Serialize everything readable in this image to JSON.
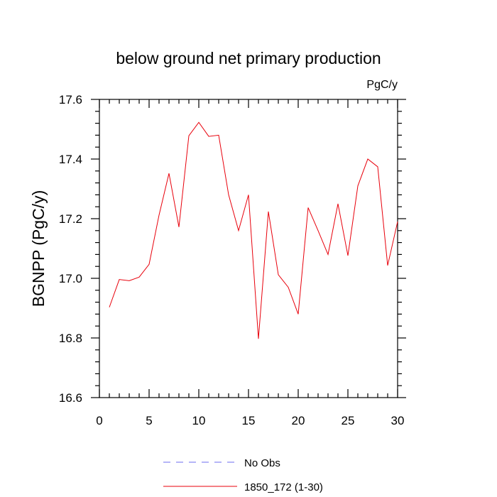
{
  "chart_data": {
    "type": "line",
    "title": "below ground net primary production",
    "units": "PgC/y",
    "ylabel": "BGNPP  (PgC/y)",
    "xlabel": "",
    "xlim": [
      0,
      30
    ],
    "ylim": [
      16.6,
      17.6
    ],
    "xticks": [
      0,
      5,
      10,
      15,
      20,
      25,
      30
    ],
    "xtick_labels": [
      "0",
      "5",
      "10",
      "15",
      "20",
      "25",
      "30"
    ],
    "yticks": [
      16.6,
      16.8,
      17.0,
      17.2,
      17.4,
      17.6
    ],
    "ytick_labels": [
      "16.6",
      "16.8",
      "17.0",
      "17.2",
      "17.4",
      "17.6"
    ],
    "series": [
      {
        "name": "1850_172 (1-30)",
        "color": "#e8000b",
        "dash": "solid",
        "x": [
          1,
          2,
          3,
          4,
          5,
          6,
          7,
          8,
          9,
          10,
          11,
          12,
          13,
          14,
          15,
          16,
          17,
          18,
          19,
          20,
          21,
          22,
          23,
          24,
          25,
          26,
          27,
          28,
          29,
          30
        ],
        "values": [
          16.903,
          16.996,
          16.992,
          17.004,
          17.047,
          17.212,
          17.352,
          17.172,
          17.478,
          17.523,
          17.476,
          17.48,
          17.28,
          17.16,
          17.28,
          16.797,
          17.224,
          17.012,
          16.97,
          16.88,
          17.237,
          17.16,
          17.08,
          17.25,
          17.076,
          17.31,
          17.4,
          17.374,
          17.043,
          17.19
        ]
      },
      {
        "name": "No Obs",
        "color": "#6c6cf0",
        "dash": "dashed",
        "x": [],
        "values": []
      }
    ],
    "legend_position": "bottom"
  }
}
